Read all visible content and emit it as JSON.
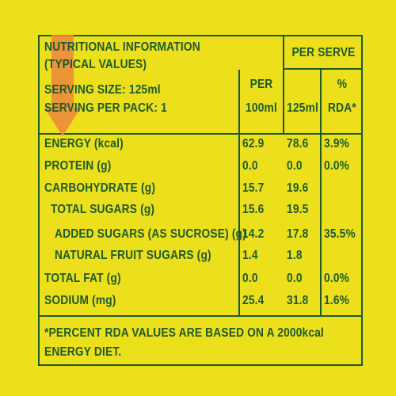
{
  "header": {
    "title_line1": "NUTRITIONAL INFORMATION",
    "title_line2": "(TYPICAL VALUES)",
    "serving_size": "SERVING SIZE: 125ml",
    "serving_per_pack": "SERVING PER PACK: 1",
    "per_serve": "PER SERVE",
    "col_per_line1": "PER",
    "col_per_line2": "100ml",
    "col_serve": "125ml",
    "col_rda_line1": "%",
    "col_rda_line2": "RDA*"
  },
  "rows": [
    {
      "label": "ENERGY (kcal)",
      "per100": "62.9",
      "per125": "78.6",
      "rda": "3.9%"
    },
    {
      "label": "PROTEIN (g)",
      "per100": "0.0",
      "per125": "0.0",
      "rda": "0.0%"
    },
    {
      "label": "CARBOHYDRATE (g)",
      "per100": "15.7",
      "per125": "19.6",
      "rda": ""
    },
    {
      "label": "TOTAL SUGARS (g)",
      "per100": "15.6",
      "per125": "19.5",
      "rda": ""
    },
    {
      "label": "ADDED SUGARS (AS SUCROSE) (g)",
      "per100": "14.2",
      "per125": "17.8",
      "rda": "35.5%"
    },
    {
      "label": "NATURAL FRUIT SUGARS (g)",
      "per100": "1.4",
      "per125": "1.8",
      "rda": ""
    },
    {
      "label": "TOTAL FAT (g)",
      "per100": "0.0",
      "per125": "0.0",
      "rda": "0.0%"
    },
    {
      "label": "SODIUM (mg)",
      "per100": "25.4",
      "per125": "31.8",
      "rda": "1.6%"
    }
  ],
  "footnote_line1": "*PERCENT RDA VALUES ARE BASED ON A 2000kcal",
  "footnote_line2": "ENERGY DIET.",
  "colors": {
    "background": "#ecdf1c",
    "text": "#1d5a2a",
    "arrow": "#ea8a3c"
  }
}
